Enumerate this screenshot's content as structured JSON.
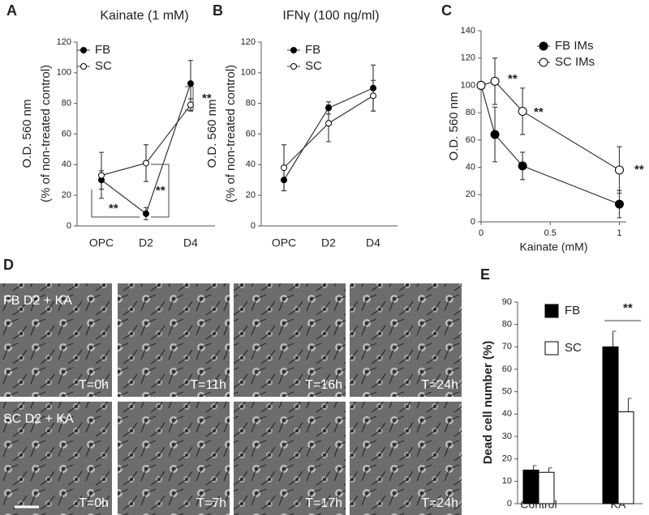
{
  "chart_data": [
    {
      "type": "line",
      "panel": "A",
      "title": "Kainate (1 mM)",
      "y_label": [
        "O.D. 560 nm",
        "(% of non-treated control)"
      ],
      "categories": [
        "OPC",
        "D2",
        "D4"
      ],
      "ylim": [
        0,
        120
      ],
      "yticks": [
        0,
        20,
        40,
        60,
        80,
        100,
        120
      ],
      "series": [
        {
          "name": "FB",
          "color": "#000000",
          "values": [
            30,
            8,
            93
          ],
          "errors": [
            6,
            4,
            15
          ]
        },
        {
          "name": "SC",
          "color": "#ffffff",
          "values": [
            33,
            41,
            79
          ],
          "errors": [
            15,
            12,
            4
          ]
        }
      ],
      "annotations": [
        "**",
        "**",
        "**"
      ]
    },
    {
      "type": "line",
      "panel": "B",
      "title": "IFNγ (100 ng/ml)",
      "y_label": [
        "O.D. 560 nm",
        "(% of non-treated control)"
      ],
      "categories": [
        "OPC",
        "D2",
        "D4"
      ],
      "ylim": [
        0,
        120
      ],
      "yticks": [
        0,
        20,
        40,
        60,
        80,
        100,
        120
      ],
      "series": [
        {
          "name": "FB",
          "color": "#000000",
          "values": [
            30,
            77,
            90
          ],
          "errors": [
            7,
            4,
            15
          ]
        },
        {
          "name": "SC",
          "color": "#ffffff",
          "values": [
            38,
            67,
            85
          ],
          "errors": [
            15,
            12,
            10
          ]
        }
      ]
    },
    {
      "type": "scatter-line",
      "panel": "C",
      "y_label": [
        "O.D. 560 nm"
      ],
      "x_label": "Kainate (mM)",
      "x": [
        0,
        0.1,
        0.3,
        1
      ],
      "xlim": [
        0,
        1.05
      ],
      "xticks": [
        0,
        0.5,
        1
      ],
      "ylim": [
        0,
        140
      ],
      "yticks": [
        0,
        20,
        40,
        60,
        80,
        100,
        120,
        140
      ],
      "series": [
        {
          "name": "FB IMs",
          "color": "#000000",
          "values": [
            100,
            64,
            41,
            13
          ],
          "errors": [
            2,
            20,
            10,
            10
          ]
        },
        {
          "name": "SC IMs",
          "color": "#ffffff",
          "values": [
            100,
            103,
            81,
            38
          ],
          "errors": [
            2,
            17,
            17,
            17
          ]
        }
      ],
      "annotations": [
        "**",
        "**",
        "**"
      ]
    },
    {
      "type": "bar",
      "panel": "E",
      "y_label": [
        "Dead cell number (%)"
      ],
      "categories": [
        "Control",
        "KA"
      ],
      "ylim": [
        0,
        90
      ],
      "yticks": [
        0,
        10,
        20,
        30,
        40,
        50,
        60,
        70,
        80,
        90
      ],
      "series": [
        {
          "name": "FB",
          "color": "#000000",
          "values": [
            15,
            70
          ],
          "errors": [
            2,
            7
          ]
        },
        {
          "name": "SC",
          "color": "#ffffff",
          "values": [
            14,
            41
          ],
          "errors": [
            2,
            6
          ]
        }
      ],
      "annotations": [
        "**"
      ]
    }
  ],
  "panel_d": {
    "letter": "D",
    "rows": [
      {
        "title": "FB D2 + KA",
        "times": [
          "T=0h",
          "T=11h",
          "T=16h",
          "T=24h"
        ]
      },
      {
        "title": "SC D2 + KA",
        "times": [
          "T=0h",
          "T=7h",
          "T=17h",
          "T=24h"
        ]
      }
    ]
  }
}
